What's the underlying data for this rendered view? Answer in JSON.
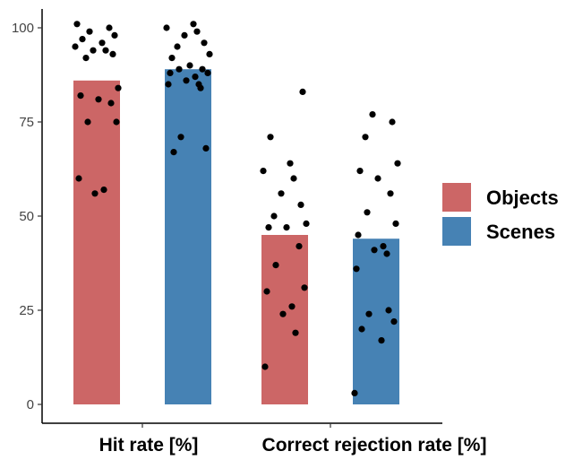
{
  "chart_data": {
    "type": "bar",
    "categories": [
      "Hit rate [%]",
      "Correct rejection rate [%]"
    ],
    "series": [
      {
        "name": "Objects",
        "color": "#CC6666",
        "values": [
          86,
          45
        ],
        "points": [
          [
            101,
            100,
            99,
            98,
            97,
            96,
            95,
            94,
            94,
            93,
            92,
            84,
            82,
            81,
            80,
            75,
            75,
            60,
            57,
            56
          ],
          [
            83,
            71,
            64,
            62,
            60,
            56,
            53,
            50,
            48,
            47,
            47,
            42,
            37,
            31,
            30,
            26,
            24,
            19,
            10
          ]
        ]
      },
      {
        "name": "Scenes",
        "color": "#4682B4",
        "values": [
          89,
          44
        ],
        "points": [
          [
            101,
            100,
            99,
            98,
            96,
            95,
            93,
            92,
            90,
            89,
            89,
            88,
            88,
            87,
            86,
            85,
            85,
            84,
            71,
            68,
            67
          ],
          [
            77,
            75,
            71,
            64,
            62,
            60,
            56,
            51,
            48,
            45,
            42,
            41,
            40,
            36,
            25,
            24,
            22,
            20,
            17,
            3
          ]
        ]
      }
    ],
    "ylim": [
      0,
      100
    ],
    "yticks": [
      0,
      25,
      50,
      75,
      100
    ],
    "legend_position": "right",
    "grid": false
  }
}
